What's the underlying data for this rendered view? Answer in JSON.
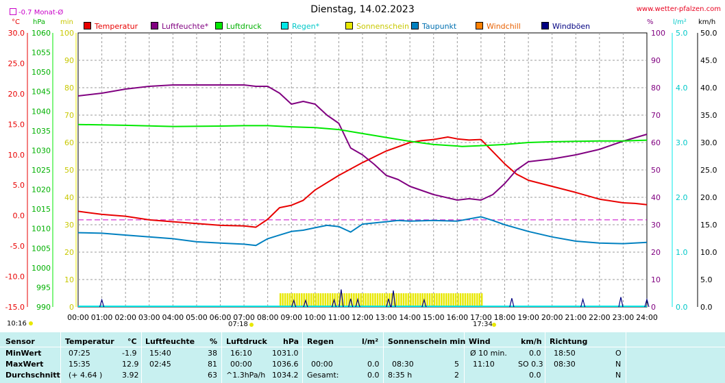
{
  "header": {
    "title": "Dienstag, 14.02.2023",
    "site": "www.wetter-pfalzen.com",
    "monthly_avg_label": "-0.7 Monat-Ø"
  },
  "units": {
    "celsius": "°C",
    "hpa": "hPa",
    "min": "min",
    "percent": "%",
    "rain": "l/m²",
    "kmh": "km/h"
  },
  "legend": [
    {
      "label": "Temperatur",
      "color": "#e80000"
    },
    {
      "label": "Luftfeuchte*",
      "color": "#800080"
    },
    {
      "label": "Luftdruck",
      "color": "#00e800"
    },
    {
      "label": "Regen*",
      "color": "#00e8e8"
    },
    {
      "label": "Sonnenschein",
      "color": "#e8e800"
    },
    {
      "label": "Taupunkt",
      "color": "#0080c0"
    },
    {
      "label": "Windchill",
      "color": "#ff8000"
    },
    {
      "label": "Windböen",
      "color": "#000080"
    }
  ],
  "markers": {
    "left_time": "10:16",
    "sunrise": "07:18",
    "sunset": "17:34"
  },
  "chart_data": {
    "type": "line",
    "title": "Dienstag, 14.02.2023",
    "x_ticks": [
      "00:00",
      "01:00",
      "02:00",
      "03:00",
      "04:00",
      "05:00",
      "06:00",
      "07:00",
      "08:00",
      "09:00",
      "10:00",
      "11:00",
      "12:00",
      "13:00",
      "14:00",
      "15:00",
      "16:00",
      "17:00",
      "18:00",
      "19:00",
      "20:00",
      "21:00",
      "22:00",
      "23:00",
      "24:00"
    ],
    "axes": {
      "temperature_ticks": [
        "30.0",
        "25.0",
        "20.0",
        "15.0",
        "10.0",
        "5.0",
        "0.0",
        "-5.0",
        "-10.0",
        "-15.0"
      ],
      "pressure_ticks": [
        "1060",
        "1055",
        "1050",
        "1045",
        "1040",
        "1035",
        "1030",
        "1025",
        "1020",
        "1015",
        "1010",
        "1005",
        "1000",
        "995",
        "990"
      ],
      "sunshine_ticks": [
        "100",
        "90",
        "80",
        "70",
        "60",
        "50",
        "40",
        "30",
        "20",
        "10",
        "0"
      ],
      "humidity_ticks": [
        "100",
        "90",
        "80",
        "70",
        "60",
        "50",
        "40",
        "30",
        "20",
        "10",
        "0"
      ],
      "rain_ticks": [
        "5.0",
        "4.0",
        "3.0",
        "2.0",
        "1.0",
        "0.0"
      ],
      "wind_ticks": [
        "50.0",
        "45.0",
        "40.0",
        "35.0",
        "30.0",
        "25.0",
        "20.0",
        "15.0",
        "10.0",
        "5.0",
        "0.0"
      ],
      "temperature_range": [
        -15,
        30
      ],
      "pressure_range": [
        990,
        1060
      ],
      "humidity_range": [
        0,
        100
      ],
      "rain_range": [
        0,
        5
      ],
      "wind_range": [
        0,
        50
      ],
      "grid": true
    },
    "monthly_avg_temperature": -0.7,
    "series": [
      {
        "name": "Temperatur",
        "color": "#e80000",
        "axis": "temperature",
        "points": [
          [
            0,
            0.7
          ],
          [
            1,
            0.2
          ],
          [
            2,
            -0.1
          ],
          [
            3,
            -0.7
          ],
          [
            4,
            -1.0
          ],
          [
            5,
            -1.3
          ],
          [
            6,
            -1.6
          ],
          [
            7,
            -1.7
          ],
          [
            7.5,
            -1.9
          ],
          [
            8,
            -0.6
          ],
          [
            8.5,
            1.3
          ],
          [
            9,
            1.7
          ],
          [
            9.5,
            2.5
          ],
          [
            10,
            4.2
          ],
          [
            11,
            6.6
          ],
          [
            12,
            8.7
          ],
          [
            13,
            10.6
          ],
          [
            14,
            12.0
          ],
          [
            14.5,
            12.3
          ],
          [
            15,
            12.5
          ],
          [
            15.6,
            12.9
          ],
          [
            16,
            12.6
          ],
          [
            16.5,
            12.4
          ],
          [
            17,
            12.5
          ],
          [
            17.5,
            10.5
          ],
          [
            18,
            8.5
          ],
          [
            18.5,
            6.8
          ],
          [
            19,
            5.8
          ],
          [
            20,
            4.8
          ],
          [
            21,
            3.8
          ],
          [
            22,
            2.7
          ],
          [
            23,
            2.1
          ],
          [
            23.5,
            2.0
          ],
          [
            24,
            1.8
          ]
        ]
      },
      {
        "name": "Luftfeuchte*",
        "color": "#800080",
        "axis": "humidity",
        "points": [
          [
            0,
            77
          ],
          [
            1,
            78
          ],
          [
            2,
            79.5
          ],
          [
            3,
            80.5
          ],
          [
            4,
            81
          ],
          [
            5,
            81
          ],
          [
            6,
            81
          ],
          [
            7,
            81
          ],
          [
            7.5,
            80.5
          ],
          [
            8,
            80.5
          ],
          [
            8.5,
            78
          ],
          [
            9,
            74
          ],
          [
            9.5,
            75
          ],
          [
            10,
            74
          ],
          [
            10.5,
            70
          ],
          [
            11,
            67
          ],
          [
            11.5,
            58
          ],
          [
            12,
            55.5
          ],
          [
            12.5,
            52
          ],
          [
            13,
            48
          ],
          [
            13.5,
            46.5
          ],
          [
            14,
            44
          ],
          [
            15,
            41
          ],
          [
            16,
            39
          ],
          [
            16.5,
            39.5
          ],
          [
            17,
            39
          ],
          [
            17.5,
            41
          ],
          [
            18,
            45
          ],
          [
            18.5,
            50
          ],
          [
            19,
            53
          ],
          [
            20,
            54
          ],
          [
            21,
            55.5
          ],
          [
            22,
            57.5
          ],
          [
            23,
            60.5
          ],
          [
            24,
            63
          ]
        ]
      },
      {
        "name": "Luftdruck",
        "color": "#00e800",
        "axis": "pressure",
        "points": [
          [
            0,
            1036.6
          ],
          [
            2,
            1036.4
          ],
          [
            4,
            1036.1
          ],
          [
            6,
            1036.2
          ],
          [
            7,
            1036.3
          ],
          [
            8,
            1036.3
          ],
          [
            9,
            1036.0
          ],
          [
            10,
            1035.8
          ],
          [
            11,
            1035.3
          ],
          [
            12,
            1034.3
          ],
          [
            13,
            1033.3
          ],
          [
            14,
            1032.3
          ],
          [
            15,
            1031.5
          ],
          [
            16,
            1031.1
          ],
          [
            16.2,
            1031.0
          ],
          [
            17,
            1031.2
          ],
          [
            18,
            1031.5
          ],
          [
            19,
            1032.0
          ],
          [
            20,
            1032.2
          ],
          [
            21,
            1032.3
          ],
          [
            22,
            1032.4
          ],
          [
            23,
            1032.4
          ],
          [
            24,
            1032.6
          ]
        ]
      },
      {
        "name": "Taupunkt",
        "color": "#0080c0",
        "axis": "temperature",
        "points": [
          [
            0,
            -2.8
          ],
          [
            1,
            -2.9
          ],
          [
            2,
            -3.2
          ],
          [
            3,
            -3.5
          ],
          [
            4,
            -3.8
          ],
          [
            5,
            -4.3
          ],
          [
            6,
            -4.5
          ],
          [
            7,
            -4.7
          ],
          [
            7.5,
            -4.9
          ],
          [
            8,
            -3.8
          ],
          [
            8.5,
            -3.2
          ],
          [
            9,
            -2.6
          ],
          [
            9.5,
            -2.4
          ],
          [
            10,
            -2.0
          ],
          [
            10.5,
            -1.6
          ],
          [
            11,
            -1.8
          ],
          [
            11.5,
            -2.7
          ],
          [
            12,
            -1.4
          ],
          [
            13,
            -1.0
          ],
          [
            13.5,
            -0.8
          ],
          [
            14,
            -0.9
          ],
          [
            15,
            -0.8
          ],
          [
            16,
            -0.9
          ],
          [
            17,
            -0.2
          ],
          [
            17.5,
            -0.8
          ],
          [
            18,
            -1.5
          ],
          [
            19,
            -2.6
          ],
          [
            20,
            -3.5
          ],
          [
            21,
            -4.2
          ],
          [
            22,
            -4.5
          ],
          [
            23,
            -4.6
          ],
          [
            24,
            -4.4
          ]
        ]
      },
      {
        "name": "Windböen",
        "color": "#000080",
        "axis": "wind",
        "points": [
          [
            1.0,
            1.3
          ],
          [
            9.1,
            1.2
          ],
          [
            9.6,
            1.2
          ],
          [
            10.8,
            1.3
          ],
          [
            11.1,
            3.2
          ],
          [
            11.5,
            1.5
          ],
          [
            11.8,
            1.4
          ],
          [
            13.1,
            1.5
          ],
          [
            13.3,
            3.0
          ],
          [
            14.6,
            1.3
          ],
          [
            18.3,
            1.6
          ],
          [
            21.3,
            1.4
          ],
          [
            22.9,
            1.8
          ],
          [
            24.0,
            1.4
          ]
        ]
      }
    ],
    "sunshine": {
      "name": "Sonnenschein",
      "color": "#e8e800",
      "start": 8.5,
      "end": 17.0,
      "level": 5
    }
  },
  "table": {
    "headers": [
      "Sensor",
      "Temperatur",
      "°C",
      "Luftfeuchte",
      "%",
      "Luftdruck",
      "hPa",
      "Regen",
      "l/m²",
      "Sonnenschein min",
      "Wind",
      "km/h",
      "Richtung"
    ],
    "rows": [
      {
        "label": "MinWert",
        "temp_time": "07:25",
        "temp_val": "-1.9",
        "hum_time": "15:40",
        "hum_val": "38",
        "press_time": "16:10",
        "press_val": "1031.0",
        "rain_time": "",
        "rain_val": "",
        "sun_time": "",
        "sun_val": "",
        "wind_time": "Ø 10 min.",
        "wind_val": "0.0",
        "dir_time": "18:50",
        "dir_val": "O"
      },
      {
        "label": "MaxWert",
        "temp_time": "15:35",
        "temp_val": "12.9",
        "hum_time": "02:45",
        "hum_val": "81",
        "press_time": "00:00",
        "press_val": "1036.6",
        "rain_time": "00:00",
        "rain_val": "0.0",
        "sun_time": "08:30",
        "sun_val": "5",
        "wind_time": "11:10",
        "wind_val": "SO 0.3",
        "dir_time": "08:30",
        "dir_val": "N"
      },
      {
        "label": "Durchschnitt",
        "temp_time": "(+ 4.64 )",
        "temp_val": "3.92",
        "hum_time": "",
        "hum_val": "63",
        "press_time": "^1.3hPa/h",
        "press_val": "1034.2",
        "rain_time": "Gesamt:",
        "rain_val": "0.0",
        "sun_time": "8:35 h",
        "sun_val": "2",
        "wind_time": "",
        "wind_val": "0.0",
        "dir_time": "",
        "dir_val": "N"
      }
    ]
  }
}
